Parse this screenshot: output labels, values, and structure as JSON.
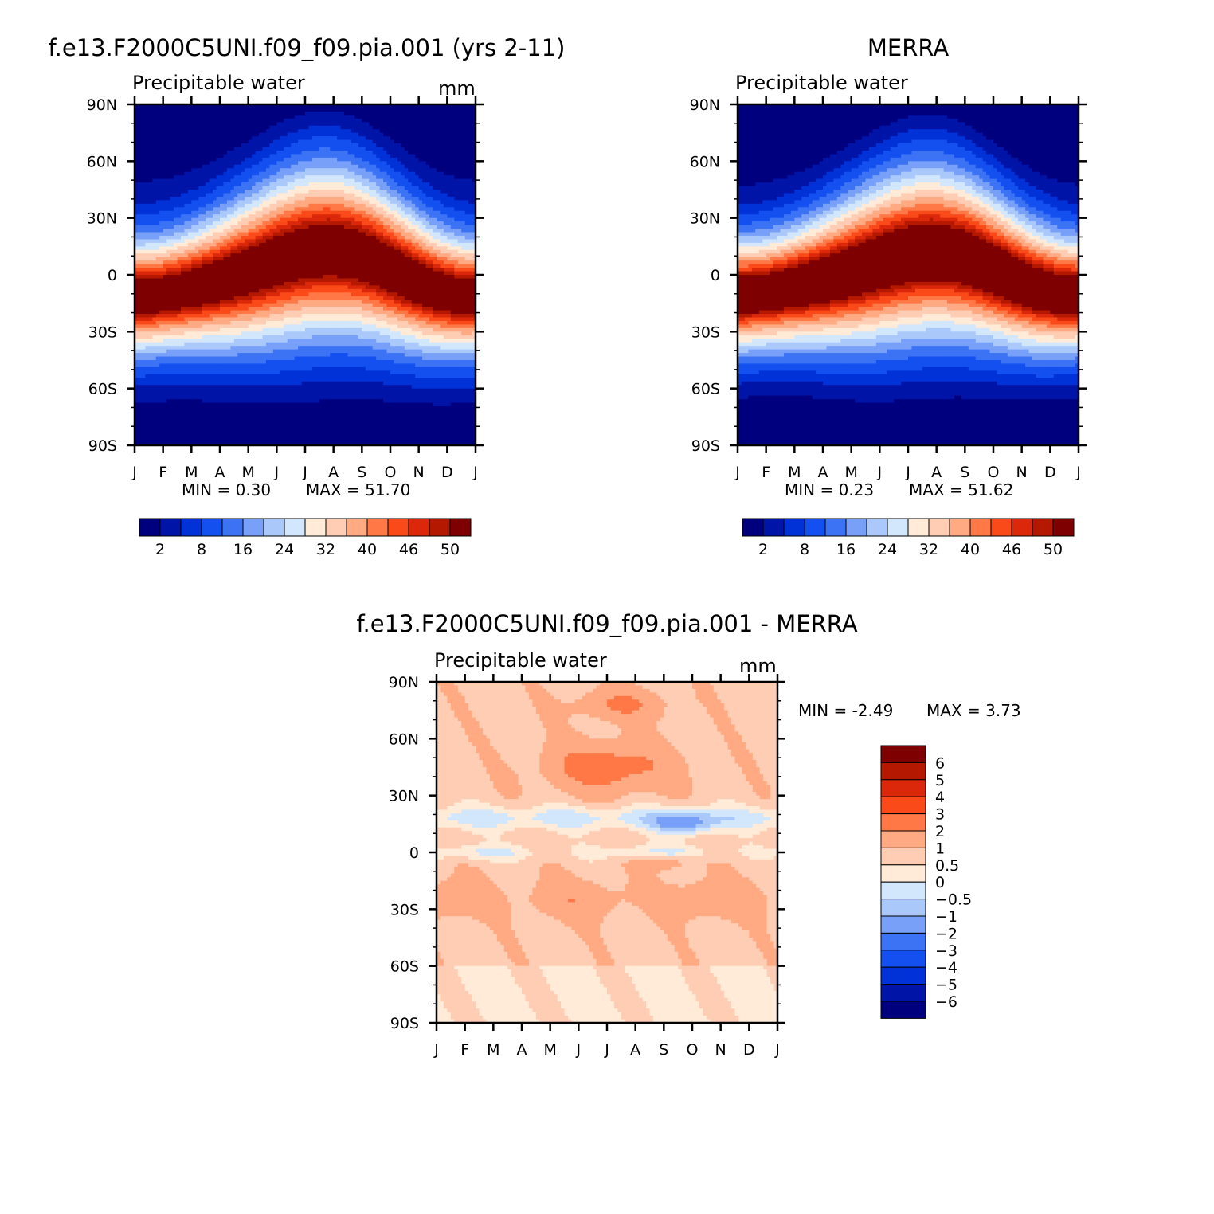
{
  "figure": {
    "panel_model_title": "f.e13.F2000C5UNI.f09_f09.pia.001 (yrs 2-11)",
    "panel_obs_title": "MERRA",
    "panel_diff_title": "f.e13.F2000C5UNI.f09_f09.pia.001 - MERRA"
  },
  "chart_data": [
    {
      "id": "model",
      "type": "heatmap",
      "title": "f.e13.F2000C5UNI.f09_f09.pia.001 (yrs 2-11)",
      "variable": "Precipitable water",
      "units": "mm",
      "x": [
        "J",
        "F",
        "M",
        "A",
        "M",
        "J",
        "J",
        "A",
        "S",
        "O",
        "N",
        "D",
        "J"
      ],
      "y_ticks": [
        "90N",
        "60N",
        "30N",
        "0",
        "30S",
        "60S",
        "90S"
      ],
      "ylim": [
        -90,
        90
      ],
      "min_label": "MIN = 0.30",
      "max_label": "MAX = 51.70",
      "min": 0.3,
      "max": 51.7,
      "colorbar_levels": [
        2,
        5,
        8,
        12,
        16,
        20,
        24,
        28,
        32,
        36,
        40,
        43,
        46,
        48,
        50
      ],
      "colorbar_labels": [
        "2",
        "8",
        "16",
        "24",
        "32",
        "40",
        "46",
        "50"
      ],
      "colorbar_colors": [
        "#00007f",
        "#0014a8",
        "#0032d8",
        "#1450f0",
        "#3c73f5",
        "#78a0f8",
        "#aac8fa",
        "#d2e6fc",
        "#ffebd7",
        "#ffcdb4",
        "#ffaa82",
        "#ff7846",
        "#fa4a19",
        "#dc280a",
        "#b41900",
        "#7f0000"
      ],
      "field_model": {
        "equator_peak": 49,
        "jul_shift": 12,
        "polar_floor": 1.5
      }
    },
    {
      "id": "obs",
      "type": "heatmap",
      "title": "MERRA",
      "variable": "Precipitable water",
      "x": [
        "J",
        "F",
        "M",
        "A",
        "M",
        "J",
        "J",
        "A",
        "S",
        "O",
        "N",
        "D",
        "J"
      ],
      "y_ticks": [
        "90N",
        "60N",
        "30N",
        "0",
        "30S",
        "60S",
        "90S"
      ],
      "ylim": [
        -90,
        90
      ],
      "min_label": "MIN = 0.23",
      "max_label": "MAX = 51.62",
      "min": 0.23,
      "max": 51.62,
      "colorbar_labels": [
        "2",
        "8",
        "16",
        "24",
        "32",
        "40",
        "46",
        "50"
      ],
      "field_model": {
        "equator_peak": 50,
        "jul_shift": 11,
        "polar_floor": 1.0
      }
    },
    {
      "id": "diff",
      "type": "heatmap",
      "title": "f.e13.F2000C5UNI.f09_f09.pia.001 - MERRA",
      "variable": "Precipitable water",
      "units": "mm",
      "x": [
        "J",
        "F",
        "M",
        "A",
        "M",
        "J",
        "J",
        "A",
        "S",
        "O",
        "N",
        "D",
        "J"
      ],
      "y_ticks": [
        "90N",
        "60N",
        "30N",
        "0",
        "30S",
        "60S",
        "90S"
      ],
      "ylim": [
        -90,
        90
      ],
      "min_label": "MIN = -2.49",
      "max_label": "MAX = 3.73",
      "min": -2.49,
      "max": 3.73,
      "colorbar_levels": [
        -6,
        -5,
        -4,
        -3,
        -2,
        -1,
        -0.5,
        0,
        0.5,
        1,
        2,
        3,
        4,
        5,
        6
      ],
      "colorbar_labels": [
        "6",
        "5",
        "4",
        "3",
        "2",
        "1",
        "0.5",
        "0",
        "−0.5",
        "−1",
        "−2",
        "−3",
        "−4",
        "−5",
        "−6"
      ],
      "colorbar_colors": [
        "#00007f",
        "#0014a8",
        "#0032d8",
        "#1450f0",
        "#3c73f5",
        "#78a0f8",
        "#aac8fa",
        "#d2e6fc",
        "#ffebd7",
        "#ffcdb4",
        "#ffaa82",
        "#ff7846",
        "#fa4a19",
        "#dc280a",
        "#b41900",
        "#7f0000"
      ]
    }
  ]
}
